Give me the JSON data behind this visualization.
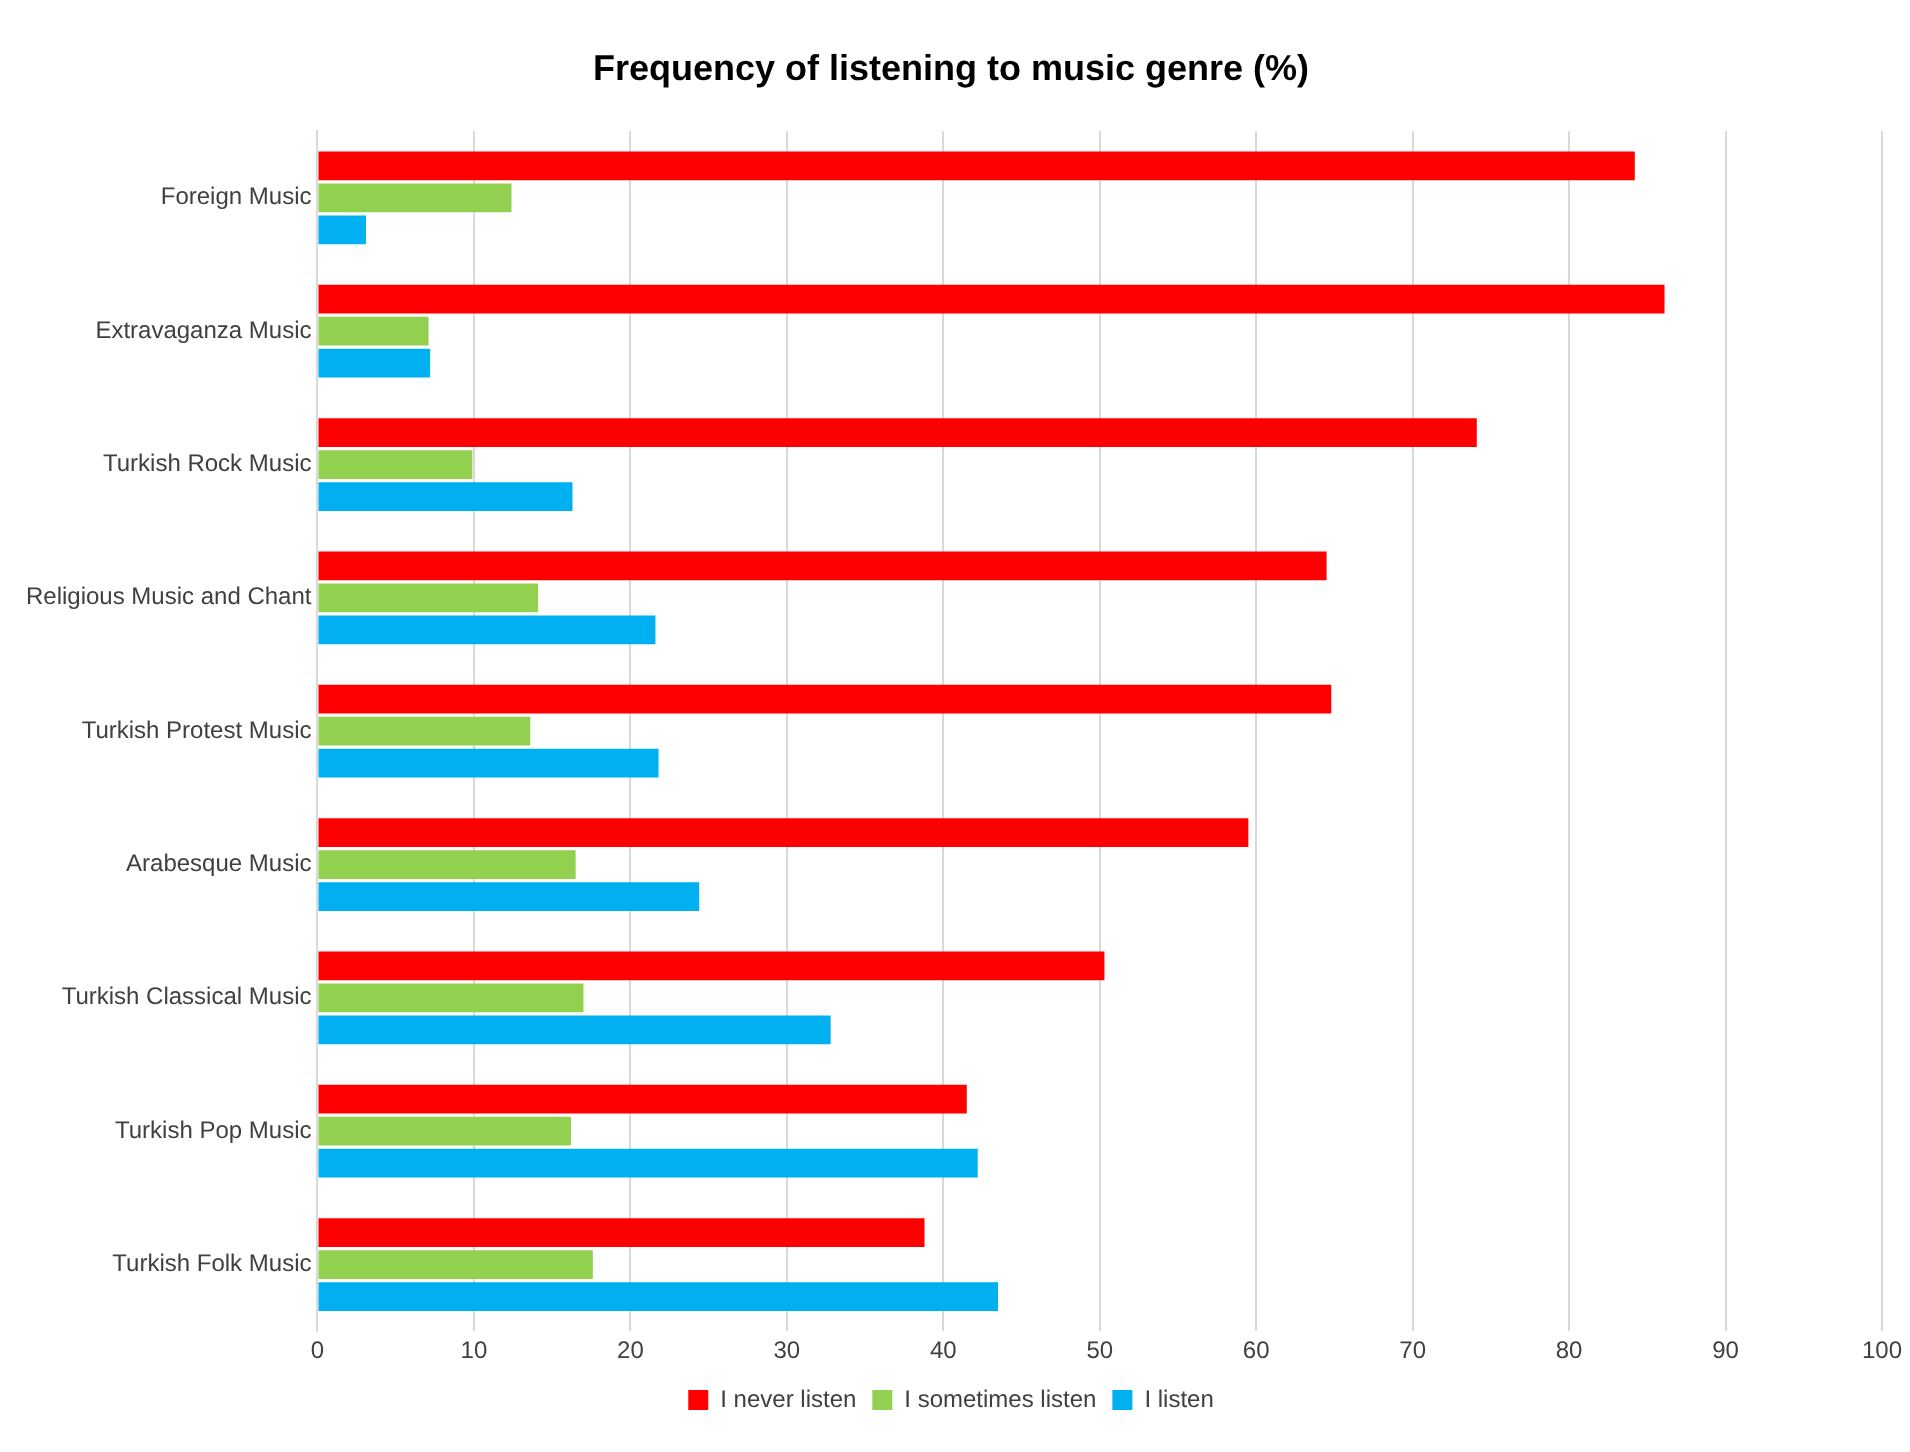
{
  "chart_data": {
    "type": "bar",
    "orientation": "horizontal",
    "title": "Frequency of listening to music genre (%)",
    "categories": [
      "Foreign Music",
      "Extravaganza Music",
      "Turkish Rock Music",
      "Religious Music and Chant",
      "Turkish Protest Music",
      "Arabesque Music",
      "Turkish Classical Music",
      "Turkish Pop Music",
      "Turkish Folk Music"
    ],
    "series": [
      {
        "name": "I never listen",
        "color": "#ff0000",
        "values": [
          84.2,
          86.1,
          74.1,
          64.5,
          64.8,
          59.5,
          50.3,
          41.5,
          38.8
        ]
      },
      {
        "name": "I sometimes listen",
        "color": "#92d050",
        "values": [
          12.4,
          7.1,
          9.9,
          14.1,
          13.6,
          16.5,
          17.0,
          16.2,
          17.6
        ]
      },
      {
        "name": "I listen",
        "color": "#00b0f0",
        "values": [
          3.1,
          7.2,
          16.3,
          21.6,
          21.8,
          24.4,
          32.8,
          42.2,
          43.5
        ]
      }
    ],
    "xlim": [
      0,
      100
    ],
    "xticks": [
      0,
      10,
      20,
      30,
      40,
      50,
      60,
      70,
      80,
      90,
      100
    ],
    "grid": "x",
    "legend": "bottom"
  }
}
